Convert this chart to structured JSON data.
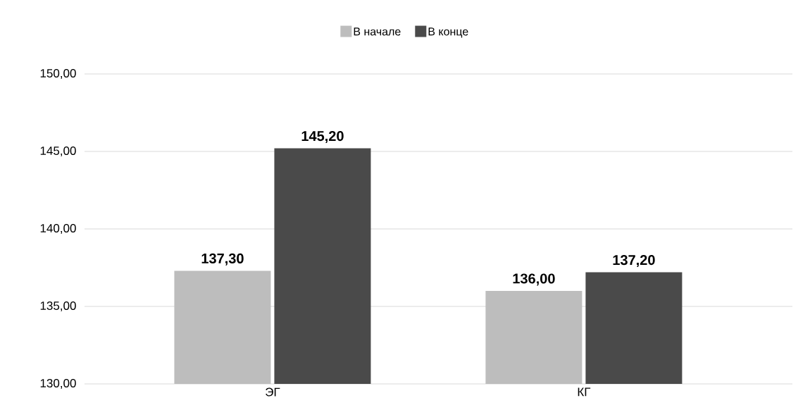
{
  "chart_data": {
    "type": "bar",
    "categories": [
      "ЭГ",
      "КГ"
    ],
    "series": [
      {
        "name": "В начале",
        "color": "#bdbdbd",
        "values": [
          137.3,
          136.0
        ],
        "value_labels": [
          "137,30",
          "136,00"
        ]
      },
      {
        "name": "В конце",
        "color": "#4a4a4a",
        "values": [
          145.2,
          137.2
        ],
        "value_labels": [
          "145,20",
          "137,20"
        ]
      }
    ],
    "ylim": [
      130,
      150
    ],
    "yticks": [
      {
        "value": 130,
        "label": "130,00"
      },
      {
        "value": 135,
        "label": "135,00"
      },
      {
        "value": 140,
        "label": "140,00"
      },
      {
        "value": 145,
        "label": "145,00"
      },
      {
        "value": 150,
        "label": "150,00"
      }
    ],
    "grid": "y",
    "legend": "top"
  }
}
